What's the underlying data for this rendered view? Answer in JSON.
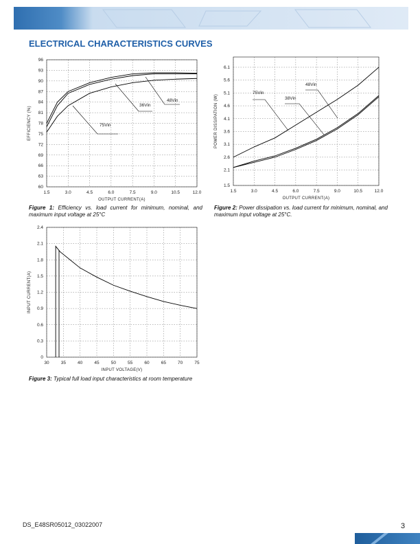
{
  "header": {
    "title": "ELECTRICAL CHARACTERISTICS CURVES"
  },
  "chart_data": [
    {
      "type": "line",
      "ylabel": "EFFICIENCY (%)",
      "xlabel": "OUTPUT CURRENT(A)",
      "x": [
        1.5,
        2.25,
        3,
        4.5,
        6,
        7.5,
        9,
        10.5,
        12
      ],
      "series": [
        {
          "name": "48Vin",
          "color": "#000000",
          "values": [
            78,
            84,
            87,
            89.5,
            91,
            92,
            92.3,
            92.3,
            92.2
          ]
        },
        {
          "name": "36Vin",
          "color": "#000000",
          "values": [
            77,
            83,
            86.5,
            89,
            90.5,
            91.5,
            92,
            92,
            92
          ]
        },
        {
          "name": "75Vin",
          "color": "#000000",
          "values": [
            75.5,
            80,
            83,
            86.5,
            88.3,
            89.5,
            90.2,
            90.5,
            90.7
          ]
        }
      ],
      "xlim": [
        1.5,
        12
      ],
      "ylim": [
        60,
        96
      ],
      "xticks": [
        1.5,
        {
          "value": 3,
          "label": "3.0"
        },
        4.5,
        {
          "value": 6,
          "label": "6.0"
        },
        7.5,
        {
          "value": 9,
          "label": "9.0"
        },
        10.5,
        {
          "value": 12,
          "label": "12.0"
        }
      ],
      "yticks": [
        60,
        63,
        66,
        69,
        72,
        75,
        78,
        81,
        84,
        87,
        90,
        93,
        96
      ],
      "grid": true
    },
    {
      "type": "line",
      "ylabel": "POWER DISSIPATION (W)",
      "xlabel": "OUTPUT CURRENT(A)",
      "x": [
        1.5,
        3,
        4.5,
        6,
        7.5,
        9,
        10.5,
        12
      ],
      "series": [
        {
          "name": "75Vin",
          "color": "#000000",
          "values": [
            2.6,
            3.0,
            3.35,
            3.85,
            4.35,
            4.85,
            5.4,
            6.1
          ]
        },
        {
          "name": "38Vin",
          "color": "#000000",
          "values": [
            2.2,
            2.4,
            2.6,
            2.9,
            3.25,
            3.7,
            4.25,
            4.95
          ]
        },
        {
          "name": "48Vin",
          "color": "#000000",
          "values": [
            2.2,
            2.45,
            2.65,
            2.95,
            3.3,
            3.75,
            4.3,
            5.0
          ]
        }
      ],
      "xlim": [
        1.5,
        12
      ],
      "ylim": [
        1.5,
        6.5
      ],
      "xticks": [
        1.5,
        {
          "value": 3,
          "label": "3.0"
        },
        4.5,
        {
          "value": 6,
          "label": "6.0"
        },
        7.5,
        {
          "value": 9,
          "label": "9.0"
        },
        10.5,
        {
          "value": 12,
          "label": "12.0"
        }
      ],
      "yticks": [
        1.5,
        2.1,
        2.6,
        3.1,
        3.6,
        4.1,
        4.6,
        5.1,
        5.6,
        6.1
      ],
      "grid": true
    },
    {
      "type": "line",
      "ylabel": "INPUT CURRENT(A)",
      "xlabel": "INPUT VOLTAGE(V)",
      "series": [
        {
          "color": "#000000",
          "x": [
            32.7,
            32.7,
            34,
            40,
            45,
            50,
            55,
            60,
            65,
            70,
            75
          ],
          "values": [
            0,
            2.05,
            1.95,
            1.65,
            1.48,
            1.33,
            1.22,
            1.12,
            1.03,
            0.96,
            0.9
          ]
        },
        {
          "color": "#000000",
          "x": [
            33.7,
            33.7
          ],
          "values": [
            0,
            1.98
          ]
        }
      ],
      "xlim": [
        30,
        75
      ],
      "ylim": [
        0,
        2.4
      ],
      "xticks": [
        30,
        35,
        40,
        45,
        50,
        55,
        60,
        65,
        70,
        75
      ],
      "yticks": [
        0,
        0.3,
        0.6,
        0.9,
        1.2,
        1.5,
        1.8,
        2.1,
        2.4
      ],
      "grid": true
    }
  ],
  "captions": [
    {
      "label": "Figure 1:",
      "text": "Efficiency vs. load current for minimum, nominal, and maximum input voltage at 25°C"
    },
    {
      "label": "Figure 2:",
      "text": "Power dissipation vs. load current for minimum, nominal, and maximum input voltage at 25°C."
    },
    {
      "label": "Figure 3:",
      "text": "Typical full load input characteristics at room temperature"
    }
  ],
  "footer": {
    "doc_id": "DS_E48SR05012_03022007",
    "page": "3"
  }
}
